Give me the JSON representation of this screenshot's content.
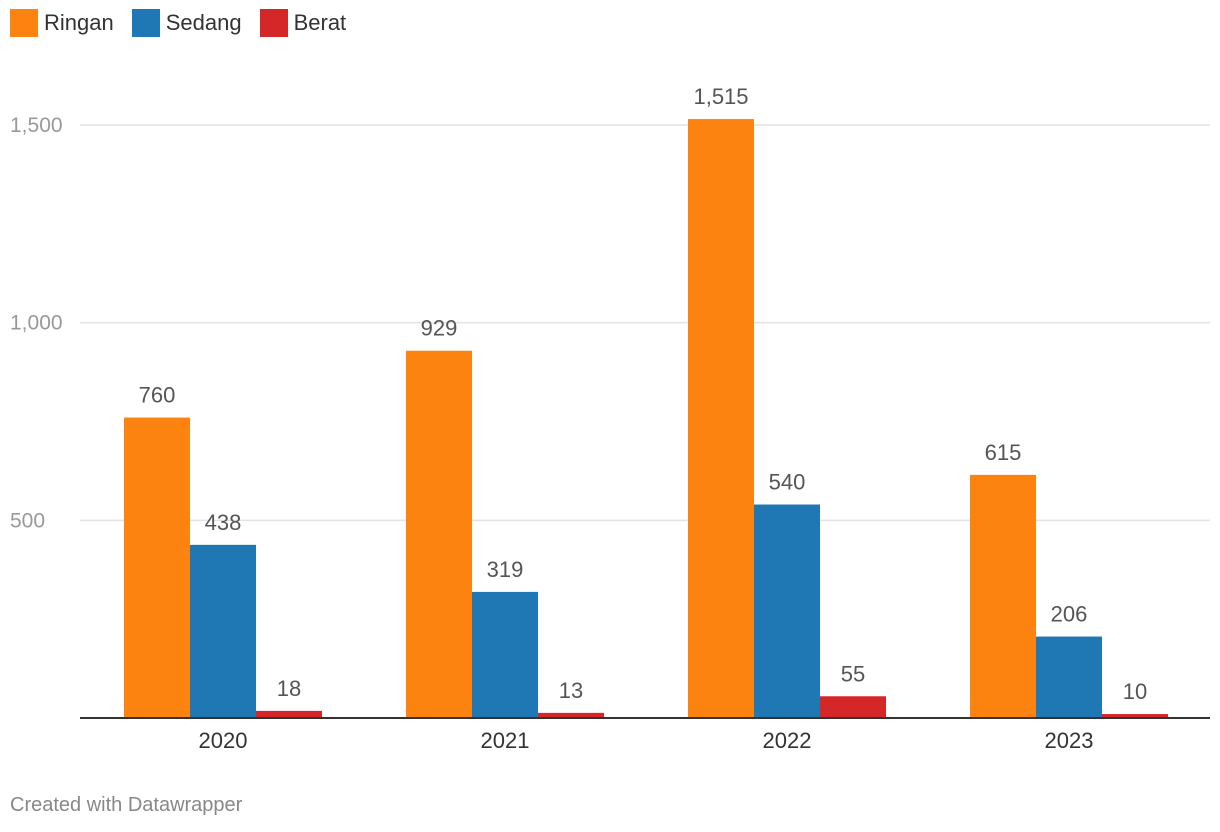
{
  "chart_data": {
    "type": "bar",
    "categories": [
      "2020",
      "2021",
      "2022",
      "2023"
    ],
    "series": [
      {
        "name": "Ringan",
        "color": "#fd8311",
        "values": [
          760,
          929,
          1515,
          615
        ]
      },
      {
        "name": "Sedang",
        "color": "#1f77b4",
        "values": [
          438,
          319,
          540,
          206
        ]
      },
      {
        "name": "Berat",
        "color": "#d62728",
        "values": [
          18,
          13,
          55,
          10
        ]
      }
    ],
    "value_labels": [
      [
        "760",
        "929",
        "1,515",
        "615"
      ],
      [
        "438",
        "319",
        "540",
        "206"
      ],
      [
        "18",
        "13",
        "55",
        "10"
      ]
    ],
    "yticks": [
      500,
      1000,
      1500
    ],
    "ytick_labels": [
      "500",
      "1,000",
      "1,500"
    ],
    "ylim": [
      0,
      1500
    ],
    "grid": true,
    "legend_position": "top-left",
    "title": "",
    "xlabel": "",
    "ylabel": ""
  },
  "credit": "Created with Datawrapper"
}
